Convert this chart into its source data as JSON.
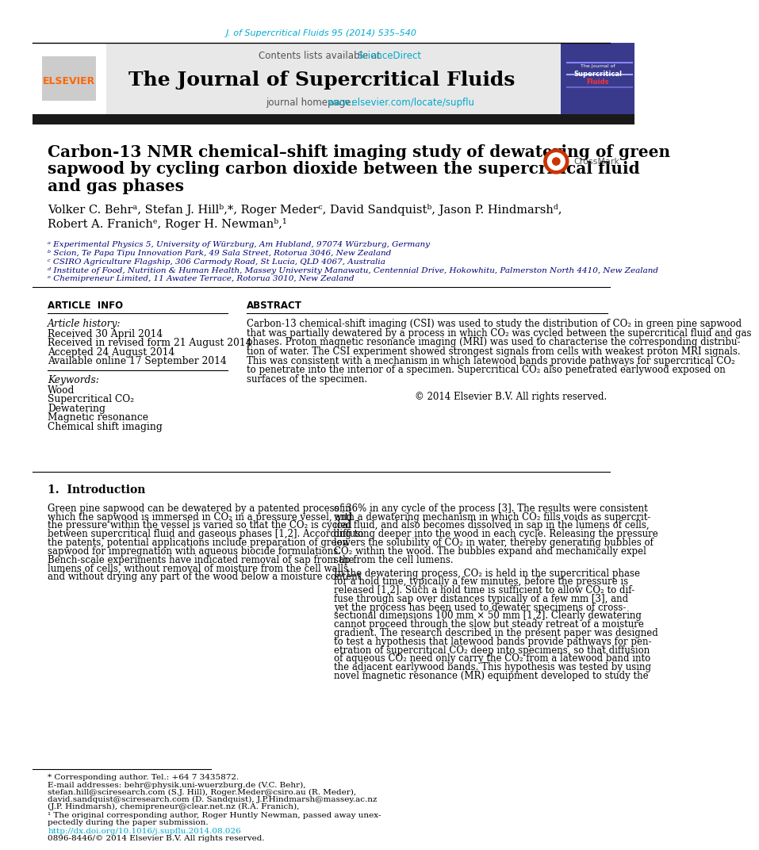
{
  "journal_ref": "J. of Supercritical Fluids 95 (2014) 535–540",
  "journal_ref_color": "#00AACC",
  "contents_line": "Contents lists available at",
  "sciencedirect": "ScienceDirect",
  "sciencedirect_color": "#00AACC",
  "journal_title": "The Journal of Supercritical Fluids",
  "journal_homepage_text": "journal homepage:",
  "journal_homepage_url": "www.elsevier.com/locate/supflu",
  "journal_homepage_url_color": "#00AACC",
  "elsevier_color": "#FF6600",
  "header_bg": "#E8E8E8",
  "dark_bar_color": "#1a1a1a",
  "article_title_line1": "Carbon-13 NMR chemical–shift imaging study of dewatering of green",
  "article_title_line2": "sapwood by cycling carbon dioxide between the supercritical fluid",
  "article_title_line3": "and gas phases",
  "authors_line1": "Volker C. Behrᵃ, Stefan J. Hillᵇ,*, Roger Mederᶜ, David Sandquistᵇ, Jason P. Hindmarshᵈ,",
  "authors_line2": "Robert A. Franichᵉ, Roger H. Newmanᵇ,¹",
  "affil_a": "ᵃ Experimental Physics 5, University of Würzburg, Am Hubland, 97074 Würzburg, Germany",
  "affil_b": "ᵇ Scion, Te Papa Tipu Innovation Park, 49 Sala Street, Rotorua 3046, New Zealand",
  "affil_c": "ᶜ CSIRO Agriculture Flagship, 306 Carmody Road, St Lucia, QLD 4067, Australia",
  "affil_d": "ᵈ Institute of Food, Nutrition & Human Health, Massey University Manawatu, Centennial Drive, Hokowhitu, Palmerston North 4410, New Zealand",
  "affil_e": "ᵉ Chemipreneur Limited, 11 Awatee Terrace, Rotorua 3010, New Zealand",
  "article_info_header": "ARTICLE  INFO",
  "abstract_header": "ABSTRACT",
  "article_history_label": "Article history:",
  "received": "Received 30 April 2014",
  "received_revised": "Received in revised form 21 August 2014",
  "accepted": "Accepted 24 August 2014",
  "available": "Available online 17 September 2014",
  "keywords_label": "Keywords:",
  "keywords": [
    "Wood",
    "Supercritical CO₂",
    "Dewatering",
    "Magnetic resonance",
    "Chemical shift imaging"
  ],
  "abstract_lines": [
    "Carbon-13 chemical-shift imaging (CSI) was used to study the distribution of CO₂ in green pine sapwood",
    "that was partially dewatered by a process in which CO₂ was cycled between the supercritical fluid and gas",
    "phases. Proton magnetic resonance imaging (MRI) was used to characterise the corresponding distribu-",
    "tion of water. The CSI experiment showed strongest signals from cells with weakest proton MRI signals.",
    "This was consistent with a mechanism in which latewood bands provide pathways for supercritical CO₂",
    "to penetrate into the interior of a specimen. Supercritical CO₂ also penetrated earlywood exposed on",
    "surfaces of the specimen."
  ],
  "copyright": "© 2014 Elsevier B.V. All rights reserved.",
  "intro_header": "1.  Introduction",
  "intro_col1_lines": [
    "Green pine sapwood can be dewatered by a patented process in",
    "which the sapwood is immersed in CO₂ in a pressure vessel, and",
    "the pressure within the vessel is varied so that the CO₂ is cycled",
    "between supercritical fluid and gaseous phases [1,2]. According to",
    "the patents, potential applications include preparation of green",
    "sapwood for impregnation with aqueous biocide formulations.",
    "Bench-scale experiments have indicated removal of sap from the",
    "lumens of cells, without removal of moisture from the cell walls",
    "and without drying any part of the wood below a moisture content"
  ],
  "intro_col2_lines_p1": [
    "of 36% in any cycle of the process [3]. The results were consistent",
    "with a dewatering mechanism in which CO₂ fills voids as supercrit-",
    "ical fluid, and also becomes dissolved in sap in the lumens of cells,",
    "diffusing deeper into the wood in each cycle. Releasing the pressure",
    "lowers the solubility of CO₂ in water, thereby generating bubbles of",
    "CO₂ within the wood. The bubbles expand and mechanically expel",
    "sap from the cell lumens."
  ],
  "intro_col2_lines_p2": [
    "In the dewatering process, CO₂ is held in the supercritical phase",
    "for a hold time, typically a few minutes, before the pressure is",
    "released [1,2]. Such a hold time is sufficient to allow CO₂ to dif-",
    "fuse through sap over distances typically of a few mm [3], and",
    "yet the process has been used to dewater specimens of cross-",
    "sectional dimensions 100 mm × 50 mm [1,2]. Clearly dewatering",
    "cannot proceed through the slow but steady retreat of a moisture",
    "gradient. The research described in the present paper was designed",
    "to test a hypothesis that latewood bands provide pathways for pen-",
    "etration of supercritical CO₂ deep into specimens, so that diffusion",
    "of aqueous CO₂ need only carry the CO₂ from a latewood band into",
    "the adjacent earlywood bands. This hypothesis was tested by using",
    "novel magnetic resonance (MR) equipment developed to study the"
  ],
  "footnote_star": "* Corresponding author. Tel.: +64 7 3435872.",
  "footnote_email1": "E-mail addresses: behr@physik.uni-wuerzburg.de (V.C. Behr),",
  "footnote_email2": "stefan.hill@sciresearch.com (S.J. Hill), Roger.Meder@csiro.au (R. Meder),",
  "footnote_email3": "david.sandquist@sciresearch.com (D. Sandquist), J.P.Hindmarsh@massey.ac.nz",
  "footnote_email4": "(J.P. Hindmarsh), chemipreneur@clear.net.nz (R.A. Franich),",
  "footnote1": "¹ The original corresponding author, Roger Huntly Newman, passed away unex-",
  "footnote1b": "pectedly during the paper submission.",
  "doi": "http://dx.doi.org/10.1016/j.supflu.2014.08.026",
  "issn": "0896-8446/© 2014 Elsevier B.V. All rights reserved.",
  "bg_color": "#FFFFFF"
}
